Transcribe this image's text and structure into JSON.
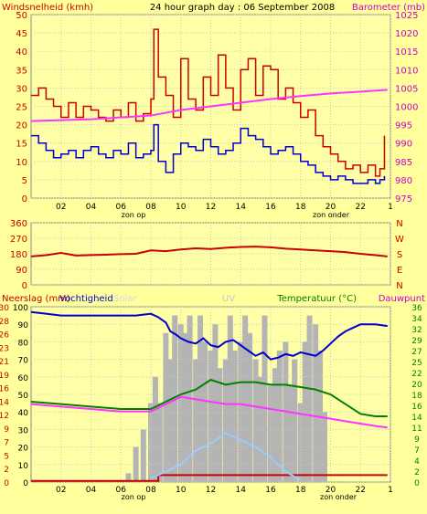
{
  "header": {
    "title": "24 hour graph day : 06 September 2008",
    "left_label": "Windsnelheid (kmh)",
    "right_label": "Barometer (mb)"
  },
  "labels": {
    "zon_op": "zon op",
    "zon_onder": "zon onder",
    "neerslag": "Neerslag (mm)",
    "vochtigheid": "Vochtigheid",
    "solar": "Solar",
    "uv": "UV",
    "temperatuur": "Temperatuur (°C)",
    "dauwpunt": "Dauwpunt"
  },
  "colors": {
    "background": "#ffff9c",
    "plot_bg": "#ffffa8",
    "grid": "#c8c8c8",
    "wind_gust": "#cc0000",
    "wind_avg": "#0000cc",
    "barometer": "#ff33ff",
    "direction": "#cc0000",
    "humidity": "#0000cc",
    "temperature": "#008000",
    "dewpoint": "#ff33ff",
    "solar": "#b4b4b4",
    "uv": "#99ccff",
    "rain": "#cc0000",
    "left_axis_text": "#cc0000",
    "right_axis_text": "#cc00cc",
    "temp_axis_text": "#008000",
    "solar_label": "#d8d8d8",
    "uv_label": "#c8c8c8"
  },
  "chart_data": [
    {
      "id": "wind-baro",
      "type": "line",
      "x_ticks": [
        "02",
        "04",
        "06",
        "08",
        "10",
        "12",
        "14",
        "16",
        "18",
        "20",
        "22",
        "1"
      ],
      "xlim": [
        0,
        24
      ],
      "y_left_ticks": [
        0,
        5,
        10,
        15,
        20,
        25,
        30,
        35,
        40,
        45,
        50
      ],
      "ylim_left": [
        0,
        50
      ],
      "y_right_ticks": [
        975,
        980,
        985,
        990,
        995,
        1000,
        1005,
        1010,
        1015,
        1020,
        1025
      ],
      "ylim_right": [
        975,
        1025
      ],
      "series": [
        {
          "name": "Windsnelheid (kmh)",
          "axis": "left",
          "step": true,
          "x": [
            0,
            0.5,
            1,
            1.5,
            2,
            2.5,
            3,
            3.5,
            4,
            4.5,
            5,
            5.5,
            6,
            6.5,
            7,
            7.5,
            8,
            8.2,
            8.5,
            9,
            9.5,
            10,
            10.5,
            11,
            11.5,
            12,
            12.5,
            13,
            13.5,
            14,
            14.5,
            15,
            15.5,
            16,
            16.5,
            17,
            17.5,
            18,
            18.5,
            19,
            19.5,
            20,
            20.5,
            21,
            21.5,
            22,
            22.5,
            23,
            23.3,
            23.6
          ],
          "values": [
            28,
            30,
            27,
            25,
            22,
            26,
            22,
            25,
            24,
            22,
            21,
            24,
            22,
            26,
            21,
            23,
            27,
            46,
            33,
            28,
            22,
            38,
            27,
            24,
            33,
            28,
            39,
            30,
            24,
            35,
            38,
            28,
            36,
            35,
            27,
            30,
            26,
            22,
            24,
            17,
            14,
            12,
            10,
            8,
            9,
            7,
            9,
            6,
            8,
            17
          ]
        },
        {
          "name": "avg",
          "axis": "left",
          "step": true,
          "x": [
            0,
            0.5,
            1,
            1.5,
            2,
            2.5,
            3,
            3.5,
            4,
            4.5,
            5,
            5.5,
            6,
            6.5,
            7,
            7.5,
            8,
            8.2,
            8.5,
            9,
            9.5,
            10,
            10.5,
            11,
            11.5,
            12,
            12.5,
            13,
            13.5,
            14,
            14.5,
            15,
            15.5,
            16,
            16.5,
            17,
            17.5,
            18,
            18.5,
            19,
            19.5,
            20,
            20.5,
            21,
            21.5,
            22,
            22.5,
            23,
            23.3,
            23.6
          ],
          "values": [
            17,
            15,
            13,
            11,
            12,
            13,
            11,
            13,
            14,
            12,
            11,
            13,
            12,
            15,
            11,
            12,
            13,
            20,
            10,
            7,
            12,
            15,
            14,
            13,
            16,
            14,
            12,
            13,
            15,
            19,
            17,
            16,
            14,
            12,
            13,
            14,
            12,
            10,
            9,
            7,
            6,
            5,
            6,
            5,
            4,
            4,
            5,
            4,
            5,
            6
          ]
        },
        {
          "name": "Barometer (mb)",
          "axis": "right",
          "step": false,
          "x": [
            0,
            4,
            8,
            10,
            12,
            14,
            16,
            18,
            20,
            22,
            23.8
          ],
          "values": [
            996,
            996.5,
            997.5,
            999,
            1000,
            1001,
            1002,
            1002.8,
            1003.5,
            1004,
            1004.5
          ]
        }
      ]
    },
    {
      "id": "direction",
      "type": "line",
      "x_ticks": [],
      "xlim": [
        0,
        24
      ],
      "y_left_ticks": [
        0,
        90,
        180,
        270,
        360
      ],
      "ylim_left": [
        0,
        360
      ],
      "y_right_ticks": [
        "N",
        "E",
        "S",
        "W",
        "N"
      ],
      "series": [
        {
          "name": "direction",
          "axis": "left",
          "step": false,
          "x": [
            0,
            1,
            2,
            3,
            4,
            5,
            6,
            7,
            8,
            9,
            10,
            11,
            12,
            13,
            14,
            15,
            16,
            17,
            18,
            19,
            20,
            21,
            22,
            23,
            23.8
          ],
          "values": [
            165,
            172,
            185,
            170,
            173,
            175,
            178,
            180,
            200,
            195,
            205,
            212,
            208,
            215,
            220,
            222,
            218,
            210,
            205,
            200,
            195,
            190,
            180,
            172,
            165
          ]
        }
      ]
    },
    {
      "id": "humidity-temp",
      "type": "line",
      "x_ticks": [
        "02",
        "04",
        "06",
        "08",
        "10",
        "12",
        "14",
        "16",
        "18",
        "20",
        "22",
        "1"
      ],
      "xlim": [
        0,
        24
      ],
      "y_left_ticks": [
        0,
        2,
        5,
        7,
        9,
        12,
        14,
        16,
        19,
        21,
        23,
        26,
        28,
        30
      ],
      "y_left_values": [
        0,
        10,
        20,
        30,
        40,
        50,
        60,
        70,
        80,
        90,
        100
      ],
      "ylim_left": [
        0,
        100
      ],
      "y_right_ticks": [
        0,
        2,
        4,
        7,
        9,
        11,
        14,
        16,
        18,
        20,
        22,
        25,
        27,
        29,
        32,
        34,
        36
      ],
      "ylim_right": [
        0,
        36
      ],
      "series": [
        {
          "name": "Vochtigheid",
          "axis": "left",
          "step": false,
          "x": [
            0,
            1,
            2,
            4,
            6,
            7,
            8,
            8.5,
            9,
            9.3,
            9.7,
            10,
            10.5,
            11,
            11.5,
            12,
            12.5,
            13,
            13.5,
            14,
            14.5,
            15,
            15.5,
            16,
            16.5,
            17,
            17.5,
            18,
            18.5,
            19,
            19.5,
            20,
            20.5,
            21,
            21.5,
            22,
            23,
            23.8
          ],
          "values": [
            97,
            96,
            95,
            95,
            95,
            95,
            96,
            94,
            91,
            86,
            84,
            82,
            80,
            79,
            82,
            78,
            77,
            80,
            81,
            78,
            75,
            72,
            74,
            70,
            71,
            73,
            72,
            74,
            73,
            72,
            75,
            79,
            83,
            86,
            88,
            90,
            90,
            89
          ]
        },
        {
          "name": "Temperatuur (°C)",
          "axis": "right",
          "step": false,
          "x": [
            0,
            2,
            4,
            6,
            8,
            9,
            10,
            11,
            12,
            13,
            14,
            15,
            16,
            17,
            18,
            19,
            20,
            21,
            22,
            23,
            23.8
          ],
          "values": [
            16.5,
            16,
            15.5,
            15,
            15,
            16.5,
            18,
            19,
            21,
            20,
            20.5,
            20.5,
            20,
            20,
            19.5,
            19,
            18,
            16,
            14,
            13.5,
            13.5
          ]
        },
        {
          "name": "Dauwpunt",
          "axis": "right",
          "step": false,
          "x": [
            0,
            2,
            4,
            6,
            8,
            9,
            10,
            11,
            12,
            13,
            14,
            15,
            16,
            17,
            18,
            19,
            20,
            21,
            22,
            23,
            23.8
          ],
          "values": [
            16,
            15.5,
            15,
            14.5,
            14.5,
            16,
            17.5,
            17,
            16.5,
            16,
            16,
            15.5,
            15,
            14.5,
            14,
            13.5,
            13,
            12.5,
            12,
            11.5,
            11.2
          ]
        },
        {
          "name": "Neerslag (mm)",
          "axis": "rain",
          "step": true,
          "x": [
            0,
            8.4,
            8.5,
            23.8
          ],
          "values": [
            0.2,
            0.2,
            1.2,
            1.2
          ]
        },
        {
          "name": "Solar",
          "axis": "solar",
          "type": "bar",
          "x": [
            6.5,
            7,
            7.5,
            8,
            8.3,
            8.6,
            9,
            9.3,
            9.6,
            10,
            10.3,
            10.6,
            11,
            11.3,
            11.6,
            12,
            12.3,
            12.6,
            13,
            13.3,
            13.6,
            14,
            14.3,
            14.6,
            15,
            15.3,
            15.6,
            16,
            16.3,
            16.6,
            17,
            17.3,
            17.6,
            18,
            18.3,
            18.6,
            19,
            19.3,
            19.6
          ],
          "values": [
            5,
            20,
            30,
            45,
            60,
            45,
            85,
            70,
            95,
            90,
            85,
            95,
            70,
            95,
            80,
            75,
            90,
            65,
            70,
            95,
            75,
            80,
            95,
            85,
            70,
            60,
            95,
            55,
            65,
            75,
            80,
            55,
            70,
            45,
            80,
            95,
            90,
            75,
            40
          ]
        },
        {
          "name": "UV",
          "axis": "solar",
          "step": false,
          "x": [
            8,
            9,
            10,
            11,
            12,
            13,
            14,
            15,
            16,
            17,
            18
          ],
          "values": [
            2,
            6,
            10,
            18,
            22,
            28,
            24,
            20,
            14,
            6,
            1
          ]
        }
      ]
    }
  ]
}
